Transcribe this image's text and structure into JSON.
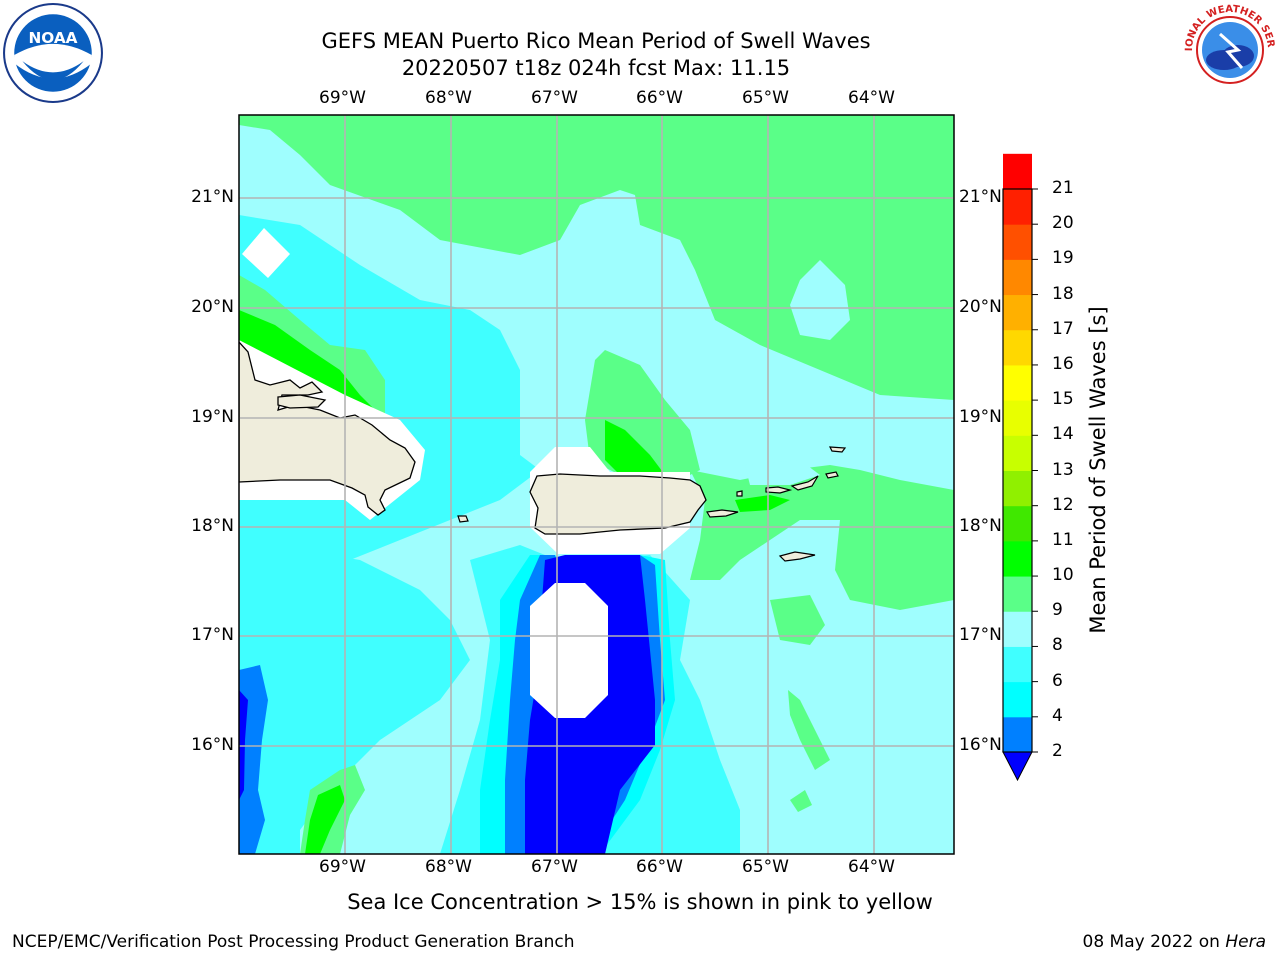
{
  "title": {
    "line1": "GEFS MEAN Puerto Rico Mean Period of Swell Waves",
    "line2": "20220507 t18z 024h fcst   Max: 11.15"
  },
  "logos": {
    "left": {
      "name": "noaa-logo",
      "text": "NOAA"
    },
    "right": {
      "name": "nws-logo",
      "text": "NATIONAL WEATHER SERVICE"
    }
  },
  "map": {
    "lon_labels": [
      "69°W",
      "68°W",
      "67°W",
      "66°W",
      "65°W",
      "64°W"
    ],
    "lat_labels": [
      "21°N",
      "20°N",
      "19°N",
      "18°N",
      "17°N",
      "16°N"
    ],
    "land_color": "#efeddc",
    "grid_color": "#b4b4b4"
  },
  "colorbar": {
    "title": "Mean Period of Swell Waves [s]",
    "ticks": [
      "21",
      "20",
      "19",
      "18",
      "17",
      "16",
      "15",
      "14",
      "13",
      "12",
      "11",
      "10",
      "9",
      "8",
      "6",
      "4",
      "2"
    ],
    "colors": [
      "#0000ff",
      "#0080ff",
      "#00ffff",
      "#40ffff",
      "#9ffefe",
      "#5aff88",
      "#00ff00",
      "#40e800",
      "#90f000",
      "#c8ff00",
      "#e8ff00",
      "#ffff00",
      "#ffd800",
      "#ffb000",
      "#ff8800",
      "#ff5000",
      "#ff2000",
      "#ff0000"
    ]
  },
  "caption": "Sea Ice Concentration > 15% is shown in pink to yellow",
  "footer": {
    "left": "NCEP/EMC/Verification Post Processing Product Generation Branch",
    "right_date": "08 May 2022 on ",
    "right_host": "Hera"
  }
}
